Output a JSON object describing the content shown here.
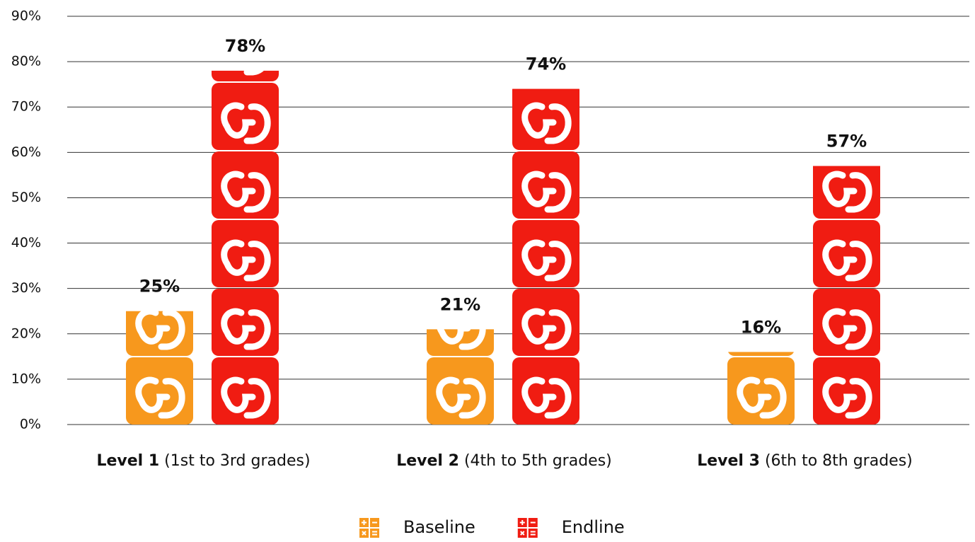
{
  "chart_data": {
    "type": "bar",
    "categories": [
      "Level 1",
      "Level 2",
      "Level 3"
    ],
    "category_details": [
      "(1st to 3rd grades)",
      "(4th to 5th grades)",
      "(6th to 8th grades)"
    ],
    "series": [
      {
        "name": "Baseline",
        "color": "#f7981d",
        "values": [
          25,
          21,
          16
        ],
        "value_labels": [
          "25%",
          "21%",
          "16%"
        ]
      },
      {
        "name": "Endline",
        "color": "#f01c12",
        "values": [
          78,
          74,
          57
        ],
        "value_labels": [
          "78%",
          "74%",
          "57%"
        ]
      }
    ],
    "ylim": [
      0,
      90
    ],
    "yticks": [
      {
        "value": 0,
        "label": "0%"
      },
      {
        "value": 10,
        "label": "10%"
      },
      {
        "value": 20,
        "label": "20%"
      },
      {
        "value": 30,
        "label": "30%"
      },
      {
        "value": 40,
        "label": "40%"
      },
      {
        "value": 50,
        "label": "50%"
      },
      {
        "value": 60,
        "label": "60%"
      },
      {
        "value": 70,
        "label": "70%"
      },
      {
        "value": 80,
        "label": "80%"
      },
      {
        "value": 90,
        "label": "90%"
      }
    ],
    "grid": true,
    "legend": "bottom"
  }
}
